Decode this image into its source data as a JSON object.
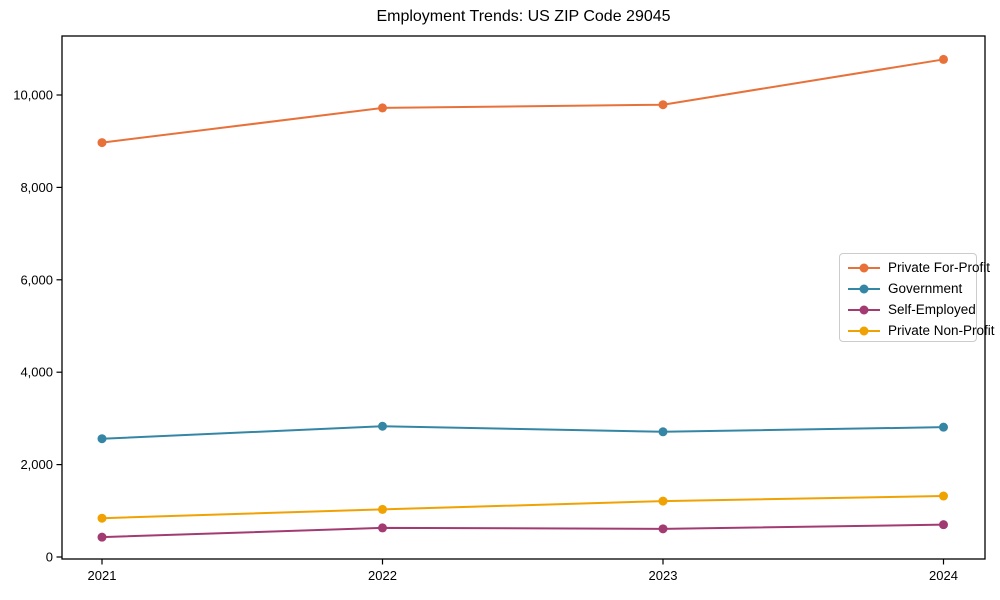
{
  "page": {
    "background_color": "#ffffff",
    "frame_color": "#000000"
  },
  "chart_data": {
    "type": "line",
    "title": "Employment Trends: US ZIP Code 29045",
    "xlabel": "",
    "ylabel": "",
    "grid": false,
    "marker": "circle",
    "legend_position": "center-right",
    "x": [
      2021,
      2022,
      2023,
      2024
    ],
    "x_tick_labels": [
      "2021",
      "2022",
      "2023",
      "2024"
    ],
    "y_ticks": [
      0,
      2000,
      4000,
      6000,
      8000,
      10000
    ],
    "y_tick_labels": [
      "0",
      "2,000",
      "4,000",
      "6,000",
      "8,000",
      "10,000"
    ],
    "ylim": [
      -100,
      11300
    ],
    "series": [
      {
        "name": "Private For-Profit",
        "color": "#E8713A",
        "values": [
          8970,
          9720,
          9790,
          10770
        ]
      },
      {
        "name": "Government",
        "color": "#3586A5",
        "values": [
          2560,
          2830,
          2710,
          2810
        ]
      },
      {
        "name": "Self-Employed",
        "color": "#A23B72",
        "values": [
          430,
          630,
          610,
          700
        ]
      },
      {
        "name": "Private Non-Profit",
        "color": "#F0A202",
        "values": [
          840,
          1030,
          1210,
          1320
        ]
      }
    ]
  }
}
